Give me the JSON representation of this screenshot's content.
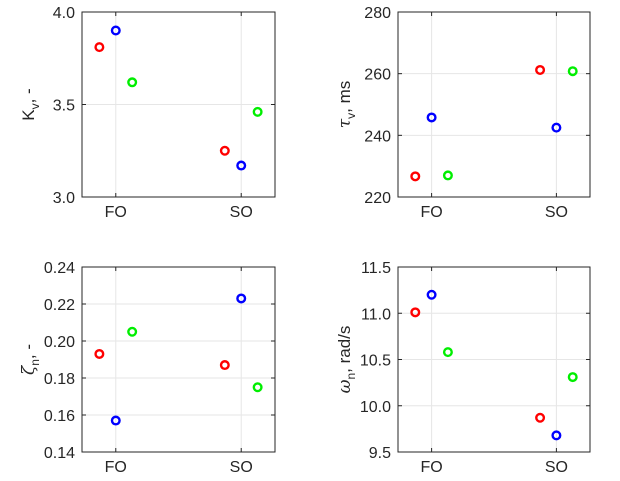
{
  "chart_data": [
    {
      "type": "scatter",
      "ylabel": {
        "main": "K",
        "sub": "v",
        "suffix": ", -"
      },
      "categories": [
        "FO",
        "SO"
      ],
      "ylim": [
        3.0,
        4.0
      ],
      "yticks": [
        "3.0",
        "3.5",
        "4.0"
      ],
      "series": [
        {
          "color": "#ff0000",
          "values": [
            3.81,
            3.25
          ]
        },
        {
          "color": "#0000ff",
          "values": [
            3.9,
            3.17
          ]
        },
        {
          "color": "#00ee00",
          "values": [
            3.62,
            3.46
          ]
        }
      ]
    },
    {
      "type": "scatter",
      "ylabel": {
        "main": "τ",
        "sub": "v",
        "suffix": ", ms"
      },
      "categories": [
        "FO",
        "SO"
      ],
      "ylim": [
        220,
        280
      ],
      "yticks": [
        "220",
        "240",
        "260",
        "280"
      ],
      "series": [
        {
          "color": "#ff0000",
          "values": [
            226.7,
            261.2
          ]
        },
        {
          "color": "#0000ff",
          "values": [
            245.8,
            242.5
          ]
        },
        {
          "color": "#00ee00",
          "values": [
            227.0,
            260.8
          ]
        }
      ]
    },
    {
      "type": "scatter",
      "ylabel": {
        "main": "ζ",
        "sub": "n",
        "suffix": ", -"
      },
      "categories": [
        "FO",
        "SO"
      ],
      "ylim": [
        0.14,
        0.24
      ],
      "yticks": [
        "0.14",
        "0.16",
        "0.18",
        "0.20",
        "0.22",
        "0.24"
      ],
      "series": [
        {
          "color": "#ff0000",
          "values": [
            0.193,
            0.187
          ]
        },
        {
          "color": "#0000ff",
          "values": [
            0.157,
            0.223
          ]
        },
        {
          "color": "#00ee00",
          "values": [
            0.205,
            0.175
          ]
        }
      ]
    },
    {
      "type": "scatter",
      "ylabel": {
        "main": "ω",
        "sub": "n",
        "suffix": ", rad/s"
      },
      "categories": [
        "FO",
        "SO"
      ],
      "ylim": [
        9.5,
        11.5
      ],
      "yticks": [
        "9.5",
        "10.0",
        "10.5",
        "11.0",
        "11.5"
      ],
      "series": [
        {
          "color": "#ff0000",
          "values": [
            11.01,
            9.87
          ]
        },
        {
          "color": "#0000ff",
          "values": [
            11.2,
            9.68
          ]
        },
        {
          "color": "#00ee00",
          "values": [
            10.58,
            10.31
          ]
        }
      ]
    }
  ]
}
